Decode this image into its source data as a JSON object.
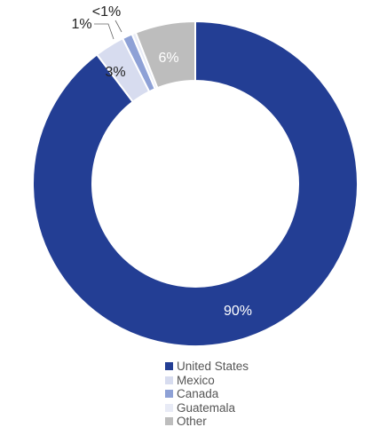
{
  "chart_data": {
    "type": "donut",
    "title": "",
    "legend_position": "bottom",
    "series": [
      {
        "name": "United States",
        "value": 90,
        "label": "90%",
        "color": "#233e94",
        "label_color": "#ffffff"
      },
      {
        "name": "Mexico",
        "value": 3,
        "label": "3%",
        "color": "#d7dcef",
        "label_color": "#222222"
      },
      {
        "name": "Canada",
        "value": 1,
        "label": "1%",
        "color": "#8ea1d6",
        "label_color": "#222222"
      },
      {
        "name": "Guatemala",
        "value": 0.4,
        "label": "<1%",
        "color": "#e8ebf6",
        "label_color": "#222222"
      },
      {
        "name": "Other",
        "value": 6,
        "label": "6%",
        "color": "#bdbdbd",
        "label_color": "#ffffff"
      }
    ]
  }
}
